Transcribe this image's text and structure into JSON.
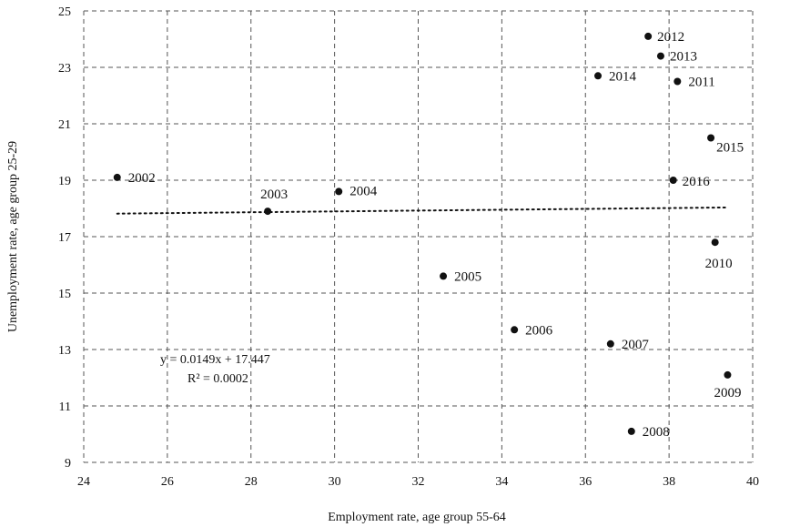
{
  "chart_data": {
    "type": "scatter",
    "title": "",
    "xlabel": "Employment rate, age group 55-64",
    "ylabel": "Unemployment rate, age group 25-29",
    "xlim": [
      24,
      40
    ],
    "ylim": [
      9,
      25
    ],
    "x_ticks": [
      24,
      26,
      28,
      30,
      32,
      34,
      36,
      38,
      40
    ],
    "y_ticks": [
      9,
      11,
      13,
      15,
      17,
      19,
      21,
      23,
      25
    ],
    "x_tick_labels": [
      "24",
      "26",
      "28",
      "30",
      "32",
      "34",
      "36",
      "38",
      "40"
    ],
    "y_tick_labels": [
      "9",
      "11",
      "13",
      "15",
      "17",
      "19",
      "21",
      "23",
      "25"
    ],
    "grid": "dashed, both axes",
    "points": [
      {
        "label": "2002",
        "x": 24.8,
        "y": 19.1
      },
      {
        "label": "2003",
        "x": 28.4,
        "y": 17.9
      },
      {
        "label": "2004",
        "x": 30.1,
        "y": 18.6
      },
      {
        "label": "2005",
        "x": 32.6,
        "y": 15.6
      },
      {
        "label": "2006",
        "x": 34.3,
        "y": 13.7
      },
      {
        "label": "2007",
        "x": 36.6,
        "y": 13.2
      },
      {
        "label": "2008",
        "x": 37.1,
        "y": 10.1
      },
      {
        "label": "2009",
        "x": 39.4,
        "y": 12.1
      },
      {
        "label": "2010",
        "x": 39.1,
        "y": 16.8
      },
      {
        "label": "2011",
        "x": 38.2,
        "y": 22.5
      },
      {
        "label": "2012",
        "x": 37.5,
        "y": 24.1
      },
      {
        "label": "2013",
        "x": 37.8,
        "y": 23.4
      },
      {
        "label": "2014",
        "x": 36.3,
        "y": 22.7
      },
      {
        "label": "2015",
        "x": 39.0,
        "y": 20.5
      },
      {
        "label": "2016",
        "x": 38.1,
        "y": 19.0
      }
    ],
    "trendline": {
      "style": "dotted",
      "slope": 0.0149,
      "intercept": 17.447,
      "x_range": [
        24.8,
        39.4
      ],
      "equation_text": "y = 0.0149x + 17.447",
      "r2_text": "R² = 0.0002"
    },
    "colors": {
      "marker": "#111111",
      "grid": "#555555"
    }
  }
}
